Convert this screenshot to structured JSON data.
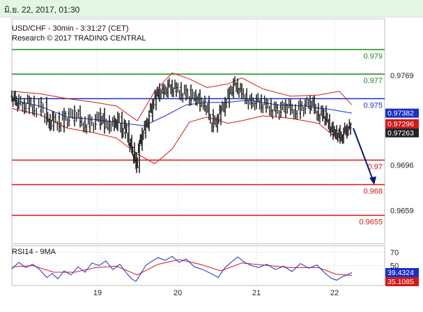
{
  "header": {
    "date_text": "มิ.ย. 22, 2017, 01:30"
  },
  "chart_data": [
    {
      "type": "line",
      "title": "USD/CHF - 30min - 3:31:27 (CET)",
      "subtitle": "Research © 2017 TRADING CENTRAL",
      "x_ticks": [
        "19",
        "20",
        "21",
        "22"
      ],
      "y_ticks": [
        "0.9769",
        "0.9696",
        "0.9659"
      ],
      "ylim": [
        0.9632,
        0.9815
      ],
      "grid": true,
      "levels": [
        {
          "label": "0.979",
          "value": 0.979,
          "color": "#1e8a1e"
        },
        {
          "label": "0.977",
          "value": 0.977,
          "color": "#1e8a1e"
        },
        {
          "label": "0.975",
          "value": 0.975,
          "color": "#1a2fc4"
        },
        {
          "label": "0.97",
          "value": 0.97,
          "color": "#d41818"
        },
        {
          "label": "0.968",
          "value": 0.968,
          "color": "#d41818"
        },
        {
          "label": "0.9655",
          "value": 0.9655,
          "color": "#d41818"
        }
      ],
      "price_tags": [
        {
          "label": "0.97382",
          "value": 0.97382,
          "color": "#1a2fc4"
        },
        {
          "label": "0.97296",
          "value": 0.97296,
          "color": "#d41818"
        },
        {
          "label": "0.97263",
          "value": 0.97263,
          "color": "#222222"
        }
      ],
      "price_series": [
        {
          "x": 0,
          "v": 0.9752
        },
        {
          "x": 5,
          "v": 0.9749
        },
        {
          "x": 10,
          "v": 0.9746
        },
        {
          "x": 18,
          "v": 0.9742
        },
        {
          "x": 25,
          "v": 0.9748
        },
        {
          "x": 32,
          "v": 0.974
        },
        {
          "x": 42,
          "v": 0.9747
        },
        {
          "x": 50,
          "v": 0.9733
        },
        {
          "x": 55,
          "v": 0.9728
        },
        {
          "x": 60,
          "v": 0.9735
        },
        {
          "x": 68,
          "v": 0.9727
        },
        {
          "x": 75,
          "v": 0.9738
        },
        {
          "x": 82,
          "v": 0.9732
        },
        {
          "x": 90,
          "v": 0.974
        },
        {
          "x": 98,
          "v": 0.9731
        },
        {
          "x": 105,
          "v": 0.9727
        },
        {
          "x": 112,
          "v": 0.9733
        },
        {
          "x": 120,
          "v": 0.9729
        },
        {
          "x": 127,
          "v": 0.9738
        },
        {
          "x": 133,
          "v": 0.9726
        },
        {
          "x": 140,
          "v": 0.9732
        },
        {
          "x": 147,
          "v": 0.9728
        },
        {
          "x": 152,
          "v": 0.9735
        },
        {
          "x": 158,
          "v": 0.9722
        },
        {
          "x": 163,
          "v": 0.9728
        },
        {
          "x": 168,
          "v": 0.9716
        },
        {
          "x": 172,
          "v": 0.971
        },
        {
          "x": 176,
          "v": 0.9702
        },
        {
          "x": 179,
          "v": 0.9694
        },
        {
          "x": 183,
          "v": 0.9712
        },
        {
          "x": 187,
          "v": 0.9722
        },
        {
          "x": 192,
          "v": 0.9728
        },
        {
          "x": 197,
          "v": 0.9736
        },
        {
          "x": 202,
          "v": 0.9745
        },
        {
          "x": 207,
          "v": 0.9752
        },
        {
          "x": 212,
          "v": 0.9758
        },
        {
          "x": 218,
          "v": 0.9755
        },
        {
          "x": 224,
          "v": 0.9761
        },
        {
          "x": 230,
          "v": 0.9756
        },
        {
          "x": 236,
          "v": 0.9759
        },
        {
          "x": 243,
          "v": 0.9753
        },
        {
          "x": 250,
          "v": 0.9757
        },
        {
          "x": 257,
          "v": 0.9749
        },
        {
          "x": 264,
          "v": 0.9753
        },
        {
          "x": 270,
          "v": 0.9744
        },
        {
          "x": 277,
          "v": 0.9748
        },
        {
          "x": 283,
          "v": 0.9737
        },
        {
          "x": 289,
          "v": 0.9727
        },
        {
          "x": 295,
          "v": 0.9733
        },
        {
          "x": 300,
          "v": 0.974
        },
        {
          "x": 306,
          "v": 0.9747
        },
        {
          "x": 312,
          "v": 0.9755
        },
        {
          "x": 318,
          "v": 0.9762
        },
        {
          "x": 324,
          "v": 0.9758
        },
        {
          "x": 330,
          "v": 0.9754
        },
        {
          "x": 337,
          "v": 0.975
        },
        {
          "x": 344,
          "v": 0.9746
        },
        {
          "x": 351,
          "v": 0.9749
        },
        {
          "x": 358,
          "v": 0.9743
        },
        {
          "x": 365,
          "v": 0.9746
        },
        {
          "x": 372,
          "v": 0.974
        },
        {
          "x": 379,
          "v": 0.9743
        },
        {
          "x": 386,
          "v": 0.9739
        },
        {
          "x": 393,
          "v": 0.9745
        },
        {
          "x": 400,
          "v": 0.9741
        },
        {
          "x": 407,
          "v": 0.9738
        },
        {
          "x": 414,
          "v": 0.9745
        },
        {
          "x": 421,
          "v": 0.9742
        },
        {
          "x": 428,
          "v": 0.9748
        },
        {
          "x": 434,
          "v": 0.9742
        },
        {
          "x": 440,
          "v": 0.9736
        },
        {
          "x": 446,
          "v": 0.974
        },
        {
          "x": 451,
          "v": 0.9733
        },
        {
          "x": 456,
          "v": 0.9727
        },
        {
          "x": 461,
          "v": 0.9721
        },
        {
          "x": 466,
          "v": 0.9724
        },
        {
          "x": 471,
          "v": 0.9718
        },
        {
          "x": 476,
          "v": 0.9722
        },
        {
          "x": 481,
          "v": 0.9725
        },
        {
          "x": 486,
          "v": 0.97263
        }
      ],
      "ma_series": [
        {
          "x": 0,
          "v": 0.9749
        },
        {
          "x": 40,
          "v": 0.9744
        },
        {
          "x": 80,
          "v": 0.9735
        },
        {
          "x": 120,
          "v": 0.9733
        },
        {
          "x": 160,
          "v": 0.973
        },
        {
          "x": 190,
          "v": 0.9728
        },
        {
          "x": 220,
          "v": 0.9736
        },
        {
          "x": 250,
          "v": 0.9745
        },
        {
          "x": 280,
          "v": 0.9747
        },
        {
          "x": 310,
          "v": 0.9747
        },
        {
          "x": 340,
          "v": 0.9749
        },
        {
          "x": 380,
          "v": 0.9745
        },
        {
          "x": 420,
          "v": 0.9744
        },
        {
          "x": 460,
          "v": 0.9741
        },
        {
          "x": 488,
          "v": 0.97382
        }
      ],
      "bb_upper": [
        {
          "x": 0,
          "v": 0.9756
        },
        {
          "x": 40,
          "v": 0.9754
        },
        {
          "x": 80,
          "v": 0.975
        },
        {
          "x": 120,
          "v": 0.9747
        },
        {
          "x": 150,
          "v": 0.9744
        },
        {
          "x": 180,
          "v": 0.9732
        },
        {
          "x": 205,
          "v": 0.9756
        },
        {
          "x": 230,
          "v": 0.9771
        },
        {
          "x": 255,
          "v": 0.9766
        },
        {
          "x": 280,
          "v": 0.9759
        },
        {
          "x": 310,
          "v": 0.9762
        },
        {
          "x": 330,
          "v": 0.9767
        },
        {
          "x": 360,
          "v": 0.9758
        },
        {
          "x": 400,
          "v": 0.9752
        },
        {
          "x": 440,
          "v": 0.9753
        },
        {
          "x": 470,
          "v": 0.9756
        },
        {
          "x": 488,
          "v": 0.9745
        }
      ],
      "bb_lower": [
        {
          "x": 0,
          "v": 0.9742
        },
        {
          "x": 40,
          "v": 0.9737
        },
        {
          "x": 80,
          "v": 0.9726
        },
        {
          "x": 120,
          "v": 0.9722
        },
        {
          "x": 150,
          "v": 0.9718
        },
        {
          "x": 180,
          "v": 0.9705
        },
        {
          "x": 205,
          "v": 0.9697
        },
        {
          "x": 230,
          "v": 0.9709
        },
        {
          "x": 255,
          "v": 0.9731
        },
        {
          "x": 280,
          "v": 0.9735
        },
        {
          "x": 310,
          "v": 0.973
        },
        {
          "x": 330,
          "v": 0.9732
        },
        {
          "x": 360,
          "v": 0.9736
        },
        {
          "x": 400,
          "v": 0.9734
        },
        {
          "x": 440,
          "v": 0.973
        },
        {
          "x": 470,
          "v": 0.9716
        },
        {
          "x": 488,
          "v": 0.97296
        }
      ],
      "forecast": {
        "from_value": 0.9726,
        "to_value": 0.9681
      }
    },
    {
      "type": "line",
      "title": "RSI14 - 9MA",
      "y_ticks": [
        "70",
        "50"
      ],
      "ylim": [
        20,
        80
      ],
      "price_tags": [
        {
          "label": "39.4324",
          "value": 39.4324,
          "color": "#1a2fc4"
        },
        {
          "label": "35.1085",
          "value": 35.1085,
          "color": "#d41818"
        }
      ],
      "rsi_series": [
        {
          "x": 0,
          "v": 45
        },
        {
          "x": 10,
          "v": 55
        },
        {
          "x": 20,
          "v": 47
        },
        {
          "x": 30,
          "v": 52
        },
        {
          "x": 40,
          "v": 44
        },
        {
          "x": 50,
          "v": 32
        },
        {
          "x": 58,
          "v": 38
        },
        {
          "x": 66,
          "v": 30
        },
        {
          "x": 75,
          "v": 42
        },
        {
          "x": 85,
          "v": 36
        },
        {
          "x": 95,
          "v": 48
        },
        {
          "x": 105,
          "v": 40
        },
        {
          "x": 115,
          "v": 54
        },
        {
          "x": 125,
          "v": 50
        },
        {
          "x": 135,
          "v": 57
        },
        {
          "x": 145,
          "v": 44
        },
        {
          "x": 155,
          "v": 52
        },
        {
          "x": 165,
          "v": 38
        },
        {
          "x": 172,
          "v": 30
        },
        {
          "x": 178,
          "v": 26
        },
        {
          "x": 184,
          "v": 36
        },
        {
          "x": 192,
          "v": 50
        },
        {
          "x": 200,
          "v": 56
        },
        {
          "x": 210,
          "v": 62
        },
        {
          "x": 220,
          "v": 58
        },
        {
          "x": 230,
          "v": 64
        },
        {
          "x": 240,
          "v": 55
        },
        {
          "x": 250,
          "v": 60
        },
        {
          "x": 262,
          "v": 48
        },
        {
          "x": 274,
          "v": 44
        },
        {
          "x": 286,
          "v": 38
        },
        {
          "x": 296,
          "v": 32
        },
        {
          "x": 306,
          "v": 47
        },
        {
          "x": 316,
          "v": 56
        },
        {
          "x": 324,
          "v": 63
        },
        {
          "x": 334,
          "v": 55
        },
        {
          "x": 344,
          "v": 50
        },
        {
          "x": 354,
          "v": 47
        },
        {
          "x": 366,
          "v": 52
        },
        {
          "x": 378,
          "v": 44
        },
        {
          "x": 390,
          "v": 49
        },
        {
          "x": 402,
          "v": 41
        },
        {
          "x": 414,
          "v": 53
        },
        {
          "x": 426,
          "v": 46
        },
        {
          "x": 438,
          "v": 51
        },
        {
          "x": 448,
          "v": 40
        },
        {
          "x": 458,
          "v": 31
        },
        {
          "x": 466,
          "v": 28
        },
        {
          "x": 474,
          "v": 33
        },
        {
          "x": 481,
          "v": 36
        },
        {
          "x": 488,
          "v": 39.4324
        }
      ],
      "rsi_ma_series": [
        {
          "x": 0,
          "v": 48
        },
        {
          "x": 30,
          "v": 50
        },
        {
          "x": 60,
          "v": 40
        },
        {
          "x": 90,
          "v": 40
        },
        {
          "x": 120,
          "v": 47
        },
        {
          "x": 150,
          "v": 49
        },
        {
          "x": 180,
          "v": 36
        },
        {
          "x": 210,
          "v": 52
        },
        {
          "x": 240,
          "v": 59
        },
        {
          "x": 270,
          "v": 52
        },
        {
          "x": 300,
          "v": 42
        },
        {
          "x": 330,
          "v": 54
        },
        {
          "x": 360,
          "v": 51
        },
        {
          "x": 400,
          "v": 47
        },
        {
          "x": 440,
          "v": 47
        },
        {
          "x": 465,
          "v": 37
        },
        {
          "x": 488,
          "v": 35.1085
        }
      ]
    }
  ]
}
